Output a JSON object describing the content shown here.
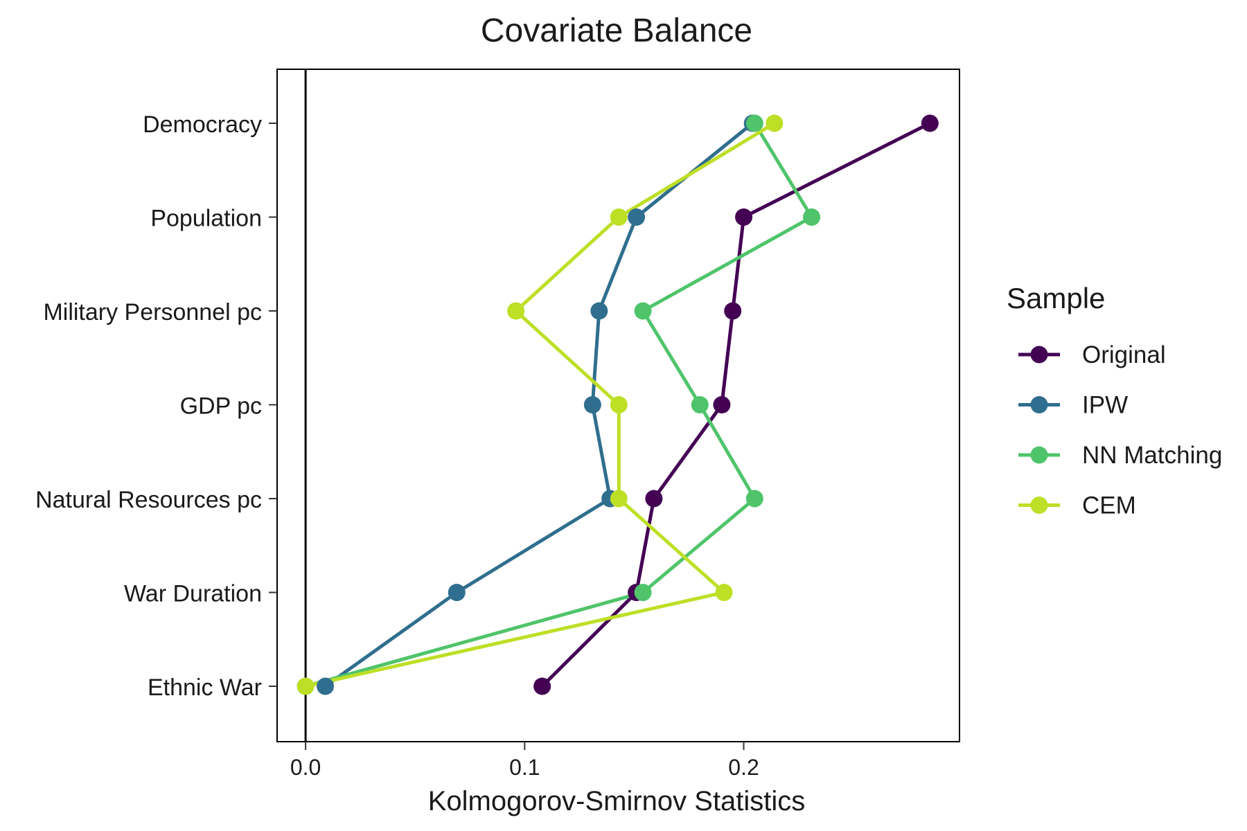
{
  "chart_data": {
    "type": "line",
    "title": "Covariate Balance",
    "xlabel": "Kolmogorov-Smirnov Statistics",
    "ylabel": "",
    "xlim": [
      -0.013,
      0.2985
    ],
    "x_ticks": [
      0.0,
      0.1,
      0.2
    ],
    "x_tick_labels": [
      "0.0",
      "0.1",
      "0.2"
    ],
    "categories": [
      "Democracy",
      "Population",
      "Military Personnel pc",
      "GDP pc",
      "Natural Resources pc",
      "War Duration",
      "Ethnic War"
    ],
    "reference_line_x": 0,
    "grid": false,
    "legend": {
      "title": "Sample",
      "position": "right"
    },
    "series": [
      {
        "name": "Original",
        "color": "#440154",
        "values": [
          0.285,
          0.2,
          0.195,
          0.19,
          0.159,
          0.151,
          0.108
        ]
      },
      {
        "name": "IPW",
        "color": "#2f6e8e",
        "values": [
          0.204,
          0.151,
          0.134,
          0.131,
          0.139,
          0.069,
          0.009
        ]
      },
      {
        "name": "NN Matching",
        "color": "#4fc46a",
        "values": [
          0.205,
          0.231,
          0.154,
          0.18,
          0.205,
          0.154,
          0.0
        ]
      },
      {
        "name": "CEM",
        "color": "#bddf26",
        "values": [
          0.214,
          0.143,
          0.096,
          0.143,
          0.143,
          0.191,
          0.0
        ]
      }
    ]
  }
}
